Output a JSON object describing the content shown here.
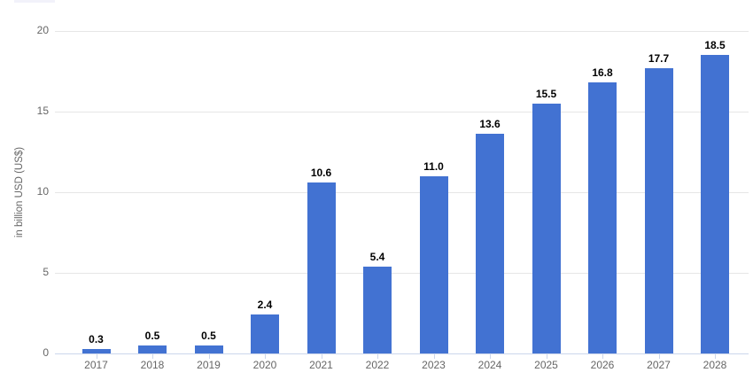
{
  "chart_data": {
    "type": "bar",
    "title": "",
    "categories": [
      "2017",
      "2018",
      "2019",
      "2020",
      "2021",
      "2022",
      "2023",
      "2024",
      "2025",
      "2026",
      "2027",
      "2028"
    ],
    "values": [
      0.3,
      0.5,
      0.5,
      2.4,
      10.6,
      5.4,
      11.0,
      13.6,
      15.5,
      16.8,
      17.7,
      18.5
    ],
    "value_labels": [
      "0.3",
      "0.5",
      "0.5",
      "2.4",
      "10.6",
      "5.4",
      "11.0",
      "13.6",
      "15.5",
      "16.8",
      "17.7",
      "18.5"
    ],
    "xlabel": "",
    "ylabel": "in billion USD (US$)",
    "ylim": [
      0,
      20
    ],
    "yticks": [
      0,
      5,
      10,
      15,
      20
    ],
    "grid": "horizontal",
    "legend": "none",
    "colors": {
      "bar": "#4272d2",
      "axis_line": "#ccd6eb",
      "gridline": "#e6e6e6",
      "tick_label": "#666666",
      "data_label": "#000000",
      "background": "#ffffff"
    }
  }
}
